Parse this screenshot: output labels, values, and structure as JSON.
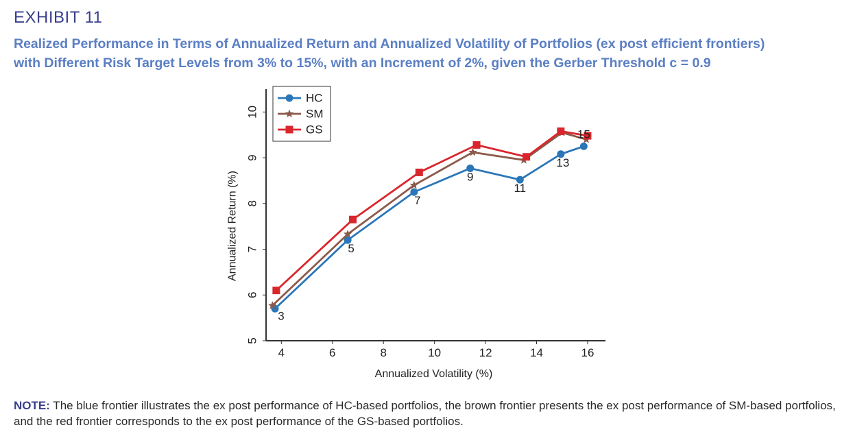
{
  "header": {
    "exhibit": "EXHIBIT 11",
    "subtitle_line1": "Realized Performance in Terms of Annualized Return and Annualized Volatility of Portfolios (ex post efficient frontiers)",
    "subtitle_line2": "with Different Risk Target Levels from 3% to 15%, with an Increment of 2%, given the Gerber Threshold c = 0.9"
  },
  "note": {
    "label": "NOTE:",
    "text": " The blue frontier illustrates the ex post performance of HC-based portfolios, the brown frontier presents the ex post performance of SM-based portfolios, and the red frontier corresponds to the ex post performance of the GS-based portfolios."
  },
  "chart_data": {
    "type": "line",
    "xlabel": "Annualized Volatility (%)",
    "ylabel": "Annualized Return (%)",
    "xlim": [
      3.4,
      16.7
    ],
    "ylim": [
      5,
      10.5
    ],
    "xticks": [
      4,
      6,
      8,
      10,
      12,
      14,
      16
    ],
    "yticks": [
      5,
      6,
      7,
      8,
      9,
      10
    ],
    "legend_position": "top-left",
    "series": [
      {
        "name": "HC",
        "color": "#2a76b8",
        "marker": "circle",
        "x": [
          3.75,
          6.6,
          9.2,
          11.4,
          13.35,
          14.95,
          15.85
        ],
        "y": [
          5.7,
          7.2,
          8.25,
          8.77,
          8.52,
          9.08,
          9.25
        ],
        "point_labels": [
          "3",
          "5",
          "7",
          "9",
          "11",
          "13",
          "15"
        ]
      },
      {
        "name": "SM",
        "color": "#8b5a4a",
        "marker": "star",
        "x": [
          3.65,
          6.6,
          9.2,
          11.5,
          13.5,
          15.0,
          15.95
        ],
        "y": [
          5.77,
          7.33,
          8.4,
          9.12,
          8.95,
          9.55,
          9.4
        ]
      },
      {
        "name": "GS",
        "color": "#d9262c",
        "marker": "square",
        "x": [
          3.8,
          6.8,
          9.4,
          11.65,
          13.6,
          14.95,
          16.0
        ],
        "y": [
          6.1,
          7.65,
          8.68,
          9.28,
          9.02,
          9.58,
          9.48
        ]
      }
    ]
  }
}
